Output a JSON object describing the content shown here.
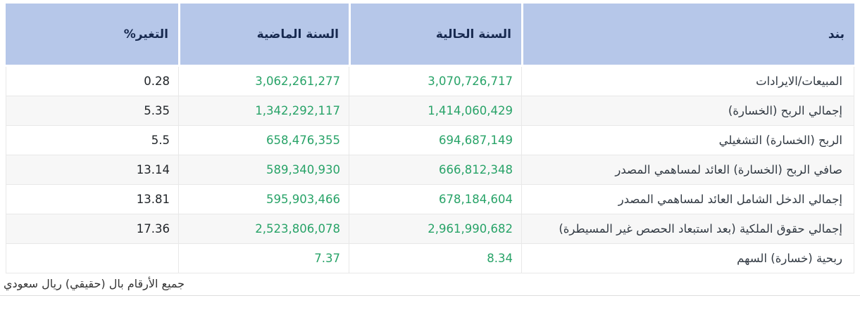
{
  "colors": {
    "header_bg": "#b6c7e9",
    "header_text": "#17294f",
    "value_green": "#28a368",
    "change_text": "#212529",
    "row_stripe": "#f7f7f7",
    "cell_border": "#e8e8e8"
  },
  "table": {
    "headers": {
      "item": "بند",
      "current_year": "السنة الحالية",
      "previous_year": "السنة الماضية",
      "change_pct": "التغير%"
    },
    "rows": [
      {
        "item": "المبيعات/الايرادات",
        "current": "3,070,726,717",
        "previous": "3,062,261,277",
        "change": "0.28"
      },
      {
        "item": "إجمالي الربح (الخسارة)",
        "current": "1,414,060,429",
        "previous": "1,342,292,117",
        "change": "5.35"
      },
      {
        "item": "الربح (الخسارة) التشغيلي",
        "current": "694,687,149",
        "previous": "658,476,355",
        "change": "5.5"
      },
      {
        "item": "صافي الربح (الخسارة) العائد لمساهمي المصدر",
        "current": "666,812,348",
        "previous": "589,340,930",
        "change": "13.14"
      },
      {
        "item": "إجمالي الدخل الشامل العائد لمساهمي المصدر",
        "current": "678,184,604",
        "previous": "595,903,466",
        "change": "13.81"
      },
      {
        "item": "إجمالي حقوق الملكية (بعد استبعاد الحصص غير المسيطرة)",
        "current": "2,961,990,682",
        "previous": "2,523,806,078",
        "change": "17.36"
      },
      {
        "item": "ربحية (خسارة) السهم",
        "current": "8.34",
        "previous": "7.37",
        "change": ""
      }
    ]
  },
  "footnote": "جميع الأرقام بال (حقيقي) ريال سعودي"
}
